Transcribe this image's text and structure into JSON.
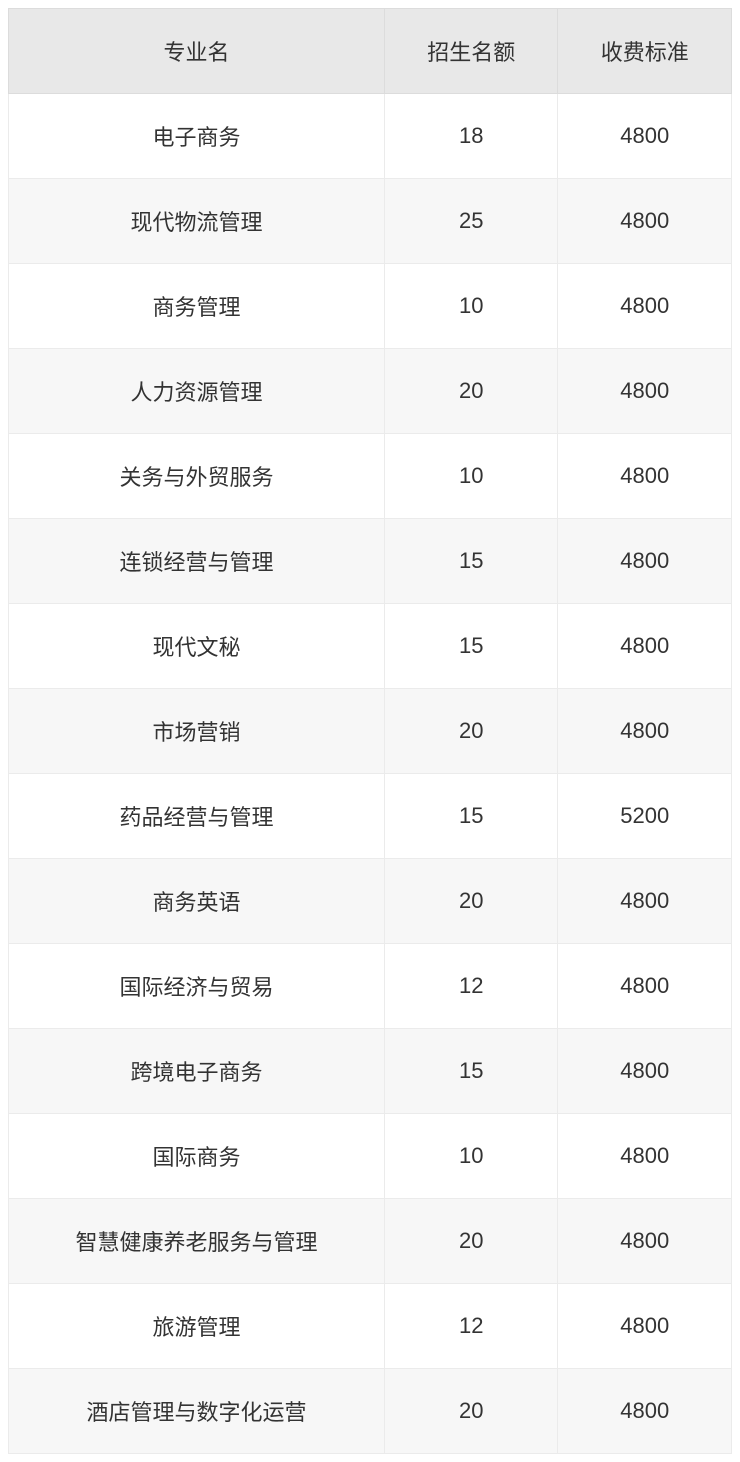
{
  "table": {
    "type": "table",
    "columns": [
      {
        "key": "major",
        "label": "专业名",
        "width": "52%",
        "align": "center"
      },
      {
        "key": "quota",
        "label": "招生名额",
        "width": "24%",
        "align": "center"
      },
      {
        "key": "fee",
        "label": "收费标准",
        "width": "24%",
        "align": "center"
      }
    ],
    "rows": [
      {
        "major": "电子商务",
        "quota": "18",
        "fee": "4800"
      },
      {
        "major": "现代物流管理",
        "quota": "25",
        "fee": "4800"
      },
      {
        "major": "商务管理",
        "quota": "10",
        "fee": "4800"
      },
      {
        "major": "人力资源管理",
        "quota": "20",
        "fee": "4800"
      },
      {
        "major": "关务与外贸服务",
        "quota": "10",
        "fee": "4800"
      },
      {
        "major": "连锁经营与管理",
        "quota": "15",
        "fee": "4800"
      },
      {
        "major": "现代文秘",
        "quota": "15",
        "fee": "4800"
      },
      {
        "major": "市场营销",
        "quota": "20",
        "fee": "4800"
      },
      {
        "major": "药品经营与管理",
        "quota": "15",
        "fee": "5200"
      },
      {
        "major": "商务英语",
        "quota": "20",
        "fee": "4800"
      },
      {
        "major": "国际经济与贸易",
        "quota": "12",
        "fee": "4800"
      },
      {
        "major": "跨境电子商务",
        "quota": "15",
        "fee": "4800"
      },
      {
        "major": "国际商务",
        "quota": "10",
        "fee": "4800"
      },
      {
        "major": "智慧健康养老服务与管理",
        "quota": "20",
        "fee": "4800"
      },
      {
        "major": "旅游管理",
        "quota": "12",
        "fee": "4800"
      },
      {
        "major": "酒店管理与数字化运营",
        "quota": "20",
        "fee": "4800"
      }
    ],
    "styling": {
      "header_bg": "#e8e8e8",
      "header_border": "#dcdcdc",
      "row_odd_bg": "#ffffff",
      "row_even_bg": "#f7f7f7",
      "cell_border": "#ebebeb",
      "text_color": "#333333",
      "font_size": 22,
      "cell_padding_v": 26,
      "cell_padding_h": 8
    }
  }
}
